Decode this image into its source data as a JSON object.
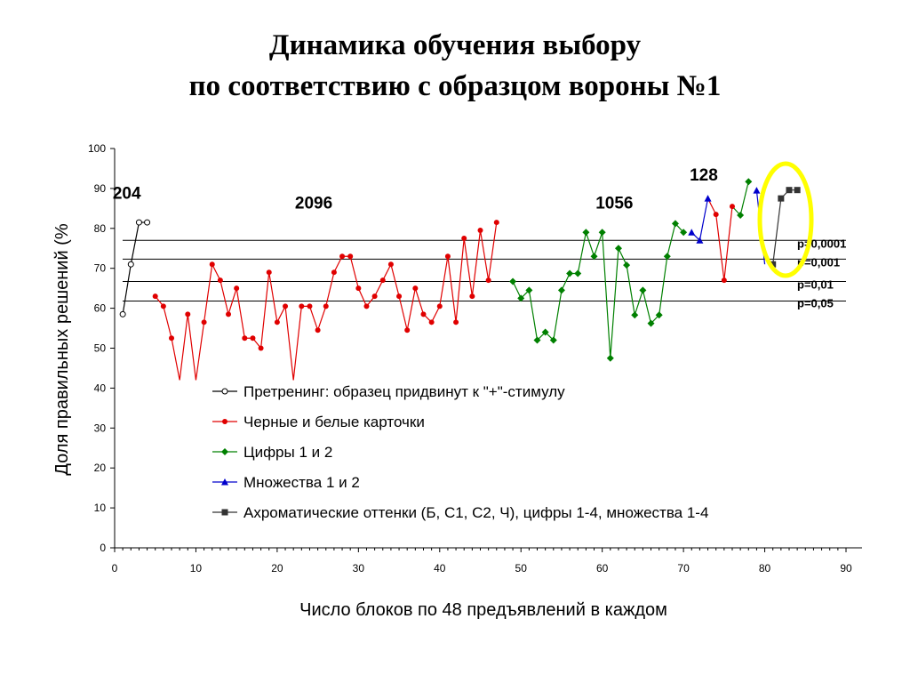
{
  "title": {
    "line1": "Динамика обучения выбору",
    "line2": "по соответствию с образцом вороны №1"
  },
  "chart_data": {
    "type": "line",
    "xlabel": "Число блоков по 48 предъявлений в каждом",
    "ylabel": "Доля правильных решений (%",
    "xlim": [
      0,
      90
    ],
    "ylim": [
      0,
      100
    ],
    "x_ticks": [
      0,
      10,
      20,
      30,
      40,
      50,
      60,
      70,
      80,
      90
    ],
    "y_ticks": [
      0,
      10,
      20,
      30,
      40,
      50,
      60,
      70,
      80,
      90,
      100
    ],
    "legend_position": "center",
    "series": [
      {
        "name": "Претренинг: образец придвинут к \"+\"-стимулу",
        "color": "#000000",
        "marker": "open-circle",
        "x": [
          1,
          2,
          3,
          4
        ],
        "y": [
          58.5,
          71,
          81.5,
          81.5
        ]
      },
      {
        "name": "Черные и белые карточки",
        "color": "#e00000",
        "marker": "circle",
        "x": [
          5,
          6,
          7,
          8,
          9,
          10,
          11,
          12,
          13,
          14,
          15,
          16,
          17,
          18,
          19,
          20,
          21,
          22,
          23,
          24,
          25,
          26,
          27,
          28,
          29,
          30,
          31,
          32,
          33,
          34,
          35,
          36,
          37,
          38,
          39,
          40,
          41,
          42,
          43,
          44,
          45,
          46,
          47
        ],
        "y": [
          63,
          60.5,
          52.5,
          42,
          58.5,
          42,
          56.5,
          71,
          67,
          58.5,
          65,
          52.5,
          52.5,
          50,
          69,
          56.5,
          60.5,
          42,
          60.5,
          60.5,
          54.5,
          60.5,
          69,
          73,
          73,
          65,
          60.5,
          63,
          67,
          71,
          63,
          54.5,
          65,
          58.5,
          56.5,
          60.5,
          73,
          56.5,
          77.5,
          63,
          79.5,
          67,
          81.5
        ]
      },
      {
        "name": "Цифры 1 и 2",
        "color": "#008000",
        "marker": "diamond",
        "x": [
          49,
          50,
          51,
          52,
          53,
          54,
          55,
          56,
          57,
          58,
          59,
          60,
          61,
          62,
          63,
          64,
          65,
          66,
          67,
          68,
          69,
          70
        ],
        "y": [
          66.7,
          62.5,
          64.5,
          52,
          54,
          52,
          64.5,
          68.7,
          68.7,
          79,
          73,
          79,
          47.5,
          75,
          70.8,
          58.3,
          64.5,
          56.2,
          58.3,
          73,
          81.2,
          79
        ],
        "extra_x": [
          77,
          78
        ],
        "extra_y": [
          83.3,
          91.7
        ]
      },
      {
        "name": "Множества 1 и 2",
        "color": "#0000cc",
        "marker": "triangle",
        "x": [
          71,
          72,
          73
        ],
        "y": [
          79,
          77,
          87.5
        ],
        "extra_x": [
          79
        ],
        "extra_y": [
          89.5
        ]
      },
      {
        "name": "Ахроматические оттенки (Б, С1, С2, Ч), цифры 1-4, множества 1-4",
        "color": "#333333",
        "marker": "square",
        "x": [
          81,
          82,
          83,
          84
        ],
        "y": [
          71,
          87.5,
          89.6,
          89.6
        ]
      }
    ],
    "extra_red": {
      "x": [
        74,
        75,
        76
      ],
      "y": [
        83.5,
        67,
        85.5
      ]
    },
    "thresholds": [
      {
        "label": "p=0,0001",
        "y": 77
      },
      {
        "label": "p=0,001",
        "y": 72.3
      },
      {
        "label": "p=0,01",
        "y": 66.7
      },
      {
        "label": "p=0,05",
        "y": 61.8
      }
    ],
    "annotations": [
      {
        "text": "204",
        "x": 1.5,
        "y": 89
      },
      {
        "text": "2096",
        "x": 24.5,
        "y": 86.5
      },
      {
        "text": "1056",
        "x": 61.5,
        "y": 86.5
      },
      {
        "text": "128",
        "x": 72.5,
        "y": 93.5
      }
    ],
    "highlight": {
      "shape": "ellipse",
      "color": "#ffff00"
    }
  }
}
